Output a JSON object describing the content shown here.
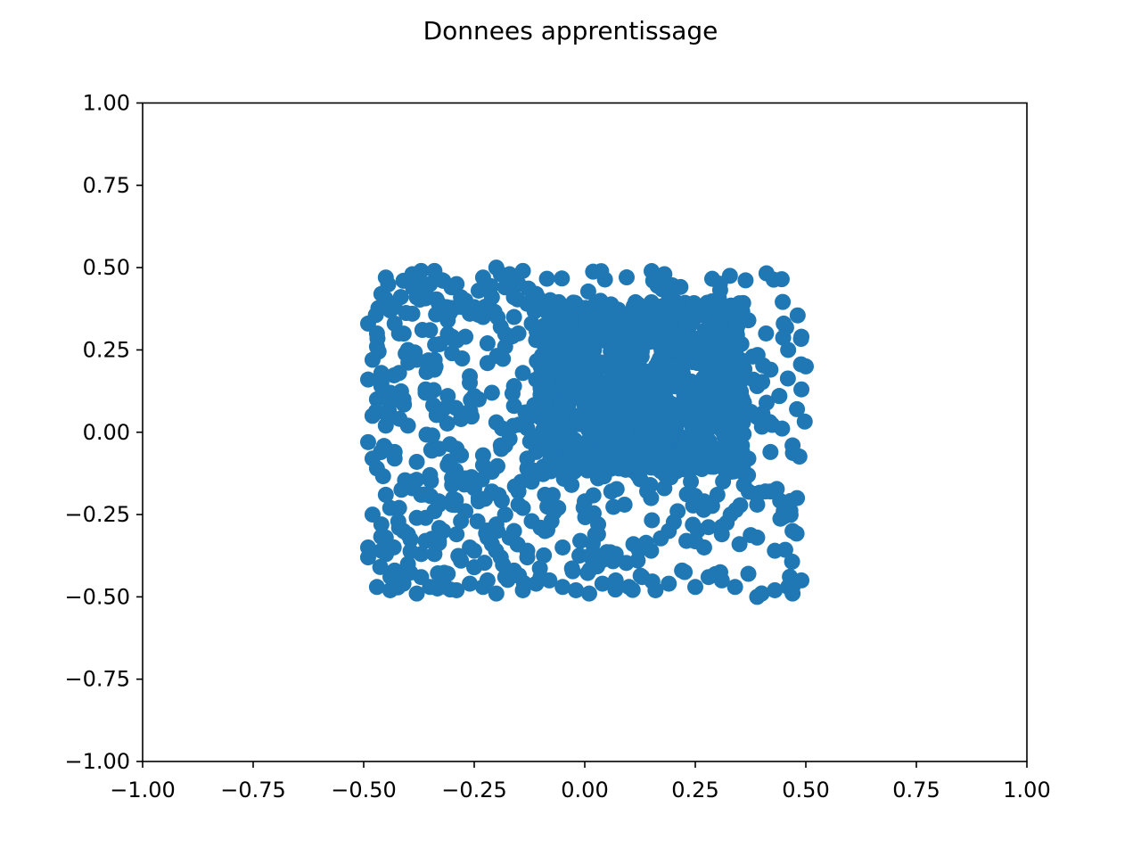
{
  "chart_data": {
    "type": "scatter",
    "title": "Donnees apprentissage",
    "xlabel": "",
    "ylabel": "",
    "xlim": [
      -1.0,
      1.0
    ],
    "ylim": [
      -1.0,
      1.0
    ],
    "xticks": [
      -1.0,
      -0.75,
      -0.5,
      -0.25,
      0.0,
      0.25,
      0.5,
      0.75,
      1.0
    ],
    "xtick_labels": [
      "−1.00",
      "−0.75",
      "−0.50",
      "−0.25",
      "0.00",
      "0.25",
      "0.50",
      "0.75",
      "1.00"
    ],
    "yticks": [
      -1.0,
      -0.75,
      -0.5,
      -0.25,
      0.0,
      0.25,
      0.5,
      0.75,
      1.0
    ],
    "ytick_labels": [
      "−1.00",
      "−0.75",
      "−0.50",
      "−0.25",
      "0.00",
      "0.25",
      "0.50",
      "0.75",
      "1.00"
    ],
    "grid": false,
    "legend": "none",
    "marker_color": "#1f77b4",
    "series": [
      {
        "x": [
          -0.49,
          -0.48,
          -0.47,
          -0.46,
          -0.45,
          -0.49,
          -0.44,
          -0.43,
          -0.42,
          -0.41,
          -0.48,
          -0.47,
          -0.46,
          -0.45,
          -0.44,
          -0.4,
          -0.39,
          -0.38,
          -0.37,
          -0.36,
          -0.35,
          -0.34,
          -0.33,
          -0.32,
          -0.31,
          -0.3,
          -0.29,
          -0.28,
          -0.27,
          -0.26,
          -0.25,
          -0.24,
          -0.23,
          -0.22,
          -0.21,
          -0.2,
          -0.19,
          -0.18,
          -0.17,
          -0.16,
          -0.15,
          -0.14,
          -0.13,
          -0.12,
          -0.11,
          -0.49,
          -0.47,
          -0.45,
          -0.43,
          -0.41,
          -0.39,
          -0.37,
          -0.35,
          -0.33,
          -0.31,
          -0.29,
          -0.27,
          -0.25,
          -0.23,
          -0.21,
          -0.19,
          -0.17,
          -0.15,
          -0.13,
          -0.11,
          -0.48,
          -0.46,
          -0.44,
          -0.42,
          -0.4,
          -0.38,
          -0.36,
          -0.34,
          -0.32,
          -0.3,
          -0.28,
          -0.26,
          -0.24,
          -0.22,
          -0.2,
          -0.18,
          -0.16,
          -0.14,
          -0.12,
          -0.1,
          -0.49,
          -0.46,
          -0.43,
          -0.4,
          -0.37,
          -0.34,
          -0.31,
          -0.28,
          -0.25,
          -0.22,
          -0.19,
          -0.16,
          -0.13,
          -0.1,
          -0.47,
          -0.44,
          -0.41,
          -0.38,
          -0.35,
          -0.32,
          -0.29,
          -0.26,
          -0.23,
          -0.2,
          -0.17,
          -0.14,
          -0.11,
          -0.08,
          -0.05,
          -0.02,
          0.01,
          0.04,
          0.07,
          0.1,
          0.13,
          0.16,
          0.19,
          0.22,
          0.25,
          0.28,
          0.31,
          0.34,
          0.37,
          0.4,
          0.43,
          0.46,
          0.49,
          -0.45,
          -0.42,
          -0.39,
          -0.36,
          -0.33,
          -0.3,
          -0.27,
          -0.24,
          -0.21,
          -0.18,
          -0.15,
          -0.12,
          -0.09,
          -0.06,
          -0.03,
          0.0,
          0.03,
          0.06,
          0.09,
          0.12,
          0.15,
          0.18,
          0.21,
          0.24,
          0.27,
          0.3,
          0.33,
          0.36,
          0.39,
          0.42,
          0.45,
          0.48,
          -0.48,
          -0.44,
          -0.4,
          -0.36,
          -0.32,
          -0.28,
          -0.24,
          -0.2,
          -0.16,
          -0.12,
          -0.08,
          -0.04,
          0.0,
          0.04,
          0.08,
          0.12,
          0.16,
          0.2,
          0.24,
          0.28,
          0.32,
          0.36,
          0.4,
          0.44,
          0.48,
          -0.46,
          -0.42,
          -0.38,
          -0.34,
          -0.3,
          -0.26,
          -0.22,
          -0.18,
          -0.14,
          -0.1,
          -0.06,
          -0.02,
          0.02,
          0.06,
          0.1,
          0.14,
          0.18,
          0.22,
          0.26,
          0.3,
          0.34,
          0.38,
          0.42,
          0.46,
          0.5,
          -0.49,
          -0.45,
          -0.41,
          -0.37,
          -0.33,
          -0.29,
          -0.25,
          -0.21,
          -0.17,
          -0.13,
          -0.09,
          -0.05,
          -0.01,
          0.03,
          0.07,
          0.11,
          0.15,
          0.19,
          0.23,
          0.27,
          0.31,
          0.35,
          0.39,
          0.43,
          0.47,
          -0.47,
          -0.43,
          -0.39,
          -0.35,
          -0.31,
          -0.27,
          -0.23,
          -0.19,
          -0.15,
          -0.11,
          -0.07,
          -0.03,
          0.01,
          0.05,
          0.09,
          0.13,
          0.17,
          0.21,
          0.25,
          0.29,
          0.33,
          0.37,
          0.41,
          0.45,
          0.49,
          -0.48,
          -0.43,
          -0.38,
          -0.33,
          -0.28,
          -0.23,
          -0.18,
          -0.13,
          -0.08,
          -0.03,
          0.02,
          0.07,
          0.12,
          0.17,
          0.22,
          0.27,
          0.32,
          0.37,
          0.42,
          0.47,
          -0.46,
          -0.41,
          -0.36,
          -0.31,
          -0.26,
          -0.21,
          -0.16,
          -0.11,
          -0.06,
          -0.01,
          0.04,
          0.09,
          0.14,
          0.19,
          0.24,
          0.29,
          0.34,
          0.39,
          0.44,
          0.49,
          0.39,
          0.4,
          0.47,
          0.47
        ],
        "y": [
          0.33,
          0.22,
          0.26,
          0.42,
          0.47,
          0.16,
          0.37,
          0.38,
          0.3,
          0.46,
          0.05,
          0.1,
          0.18,
          0.02,
          0.12,
          0.25,
          0.48,
          0.41,
          0.49,
          0.43,
          0.45,
          0.49,
          0.39,
          0.46,
          0.35,
          0.29,
          0.45,
          0.41,
          0.4,
          0.36,
          0.38,
          0.43,
          0.47,
          0.27,
          0.41,
          0.5,
          0.48,
          0.44,
          0.48,
          0.35,
          0.45,
          0.49,
          0.39,
          0.33,
          0.42,
          -0.03,
          -0.11,
          -0.05,
          -0.08,
          -0.17,
          -0.15,
          -0.19,
          -0.13,
          -0.22,
          -0.1,
          -0.05,
          -0.14,
          -0.17,
          -0.07,
          -0.12,
          -0.04,
          -0.02,
          -0.18,
          -0.11,
          -0.06,
          -0.25,
          -0.28,
          -0.23,
          -0.29,
          -0.31,
          -0.26,
          -0.33,
          -0.24,
          -0.3,
          -0.22,
          -0.27,
          -0.35,
          -0.21,
          -0.32,
          -0.28,
          -0.25,
          -0.3,
          -0.23,
          -0.27,
          -0.29,
          -0.38,
          -0.36,
          -0.42,
          -0.4,
          -0.44,
          -0.37,
          -0.43,
          -0.39,
          -0.41,
          -0.45,
          -0.38,
          -0.42,
          -0.36,
          -0.44,
          -0.47,
          -0.48,
          -0.46,
          -0.49,
          -0.47,
          -0.45,
          -0.48,
          -0.46,
          -0.47,
          -0.49,
          -0.44,
          -0.48,
          -0.46,
          -0.45,
          -0.47,
          -0.48,
          -0.49,
          -0.46,
          -0.45,
          -0.47,
          -0.44,
          -0.48,
          -0.46,
          -0.42,
          -0.47,
          -0.44,
          -0.45,
          -0.47,
          -0.43,
          -0.49,
          -0.48,
          -0.47,
          -0.45,
          -0.19,
          -0.23,
          -0.17,
          -0.26,
          -0.21,
          -0.16,
          -0.24,
          -0.2,
          -0.18,
          -0.25,
          -0.22,
          -0.15,
          -0.19,
          -0.23,
          -0.16,
          -0.21,
          -0.14,
          -0.18,
          -0.22,
          -0.13,
          -0.2,
          -0.17,
          -0.24,
          -0.15,
          -0.21,
          -0.19,
          -0.25,
          -0.16,
          -0.22,
          -0.18,
          -0.24,
          -0.2,
          0.05,
          0.09,
          0.02,
          0.12,
          0.07,
          0.04,
          0.1,
          0.03,
          0.08,
          0.05,
          0.11,
          0.04,
          0.09,
          0.02,
          0.13,
          0.06,
          0.1,
          0.03,
          0.08,
          0.12,
          0.05,
          0.09,
          0.04,
          0.11,
          0.07,
          0.15,
          0.18,
          0.22,
          0.19,
          0.24,
          0.17,
          0.21,
          0.26,
          0.18,
          0.2,
          0.23,
          0.16,
          0.25,
          0.19,
          0.22,
          0.17,
          0.24,
          0.2,
          0.26,
          0.18,
          0.21,
          0.23,
          0.19,
          0.25,
          0.2,
          -0.35,
          -0.32,
          -0.3,
          -0.37,
          -0.33,
          -0.31,
          -0.36,
          -0.34,
          -0.32,
          -0.38,
          -0.3,
          -0.35,
          -0.33,
          -0.31,
          -0.37,
          -0.34,
          -0.36,
          -0.3,
          -0.33,
          -0.35,
          -0.31,
          -0.34,
          -0.32,
          -0.36,
          -0.3,
          0.3,
          0.33,
          0.36,
          0.31,
          0.34,
          0.29,
          0.35,
          0.32,
          0.3,
          0.28,
          0.27,
          0.34,
          0.31,
          0.29,
          0.33,
          0.3,
          0.32,
          0.28,
          0.35,
          0.31,
          0.29,
          0.34,
          0.3,
          0.33,
          0.29,
          -0.08,
          -0.06,
          -0.09,
          -0.05,
          -0.07,
          -0.1,
          -0.04,
          -0.08,
          -0.06,
          -0.03,
          -0.02,
          -0.05,
          -0.04,
          -0.06,
          -0.03,
          -0.07,
          -0.05,
          -0.08,
          -0.06,
          -0.04,
          0.14,
          0.1,
          0.13,
          0.11,
          0.15,
          0.12,
          0.14,
          0.16,
          0.13,
          0.11,
          0.15,
          0.12,
          0.14,
          0.16,
          0.13,
          0.15,
          0.12,
          0.14,
          0.11,
          0.13,
          -0.5,
          -0.49,
          -0.47,
          -0.49
        ]
      },
      {
        "note_region": "dense cluster",
        "x": [],
        "y": []
      }
    ]
  }
}
